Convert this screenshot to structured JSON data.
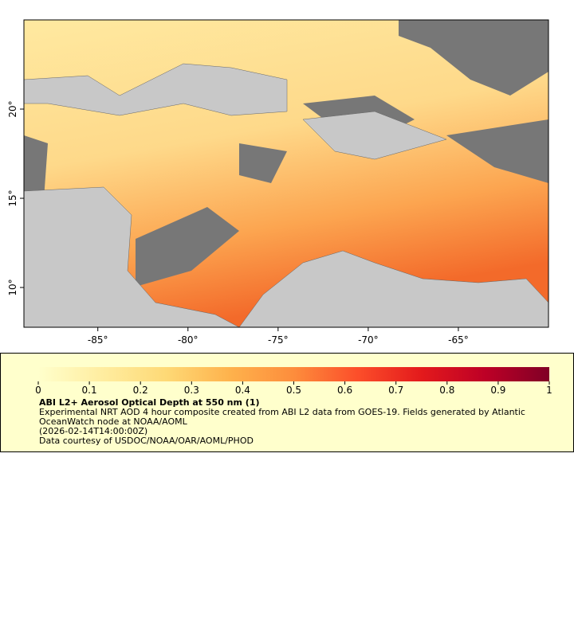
{
  "map": {
    "xlim": [
      -89.1,
      -60
    ],
    "ylim": [
      7.77,
      25
    ],
    "xticks": [
      {
        "value": -85,
        "label": "-85°"
      },
      {
        "value": -80,
        "label": "-80°"
      },
      {
        "value": -75,
        "label": "-75°"
      },
      {
        "value": -70,
        "label": "-70°"
      },
      {
        "value": -65,
        "label": "-65°"
      }
    ],
    "yticks": [
      {
        "value": 10,
        "label": "10°"
      },
      {
        "value": 15,
        "label": "15°"
      },
      {
        "value": 20,
        "label": "20°"
      }
    ]
  },
  "colorbar": {
    "range": [
      0,
      1
    ],
    "ticks": [
      0,
      0.1,
      0.2,
      0.3,
      0.4,
      0.5,
      0.6,
      0.7,
      0.8,
      0.9,
      1
    ],
    "colors": [
      "#ffffcc",
      "#ffeda0",
      "#fed976",
      "#feb24c",
      "#fd8d3c",
      "#fc4e2a",
      "#e31a1c",
      "#bd0026",
      "#800026"
    ]
  },
  "legend": {
    "title": "ABI L2+ Aerosol Optical Depth at 550 nm (1)",
    "description": "Experimental NRT AOD 4 hour composite created from ABI L2 data from GOES-19. Fields generated by Atlantic OceanWatch node at NOAA/AOML",
    "time": "(2026-02-14T14:00:00Z)",
    "credit": "Data courtesy of USDOC/NOAA/OAR/AOML/PHOD"
  }
}
